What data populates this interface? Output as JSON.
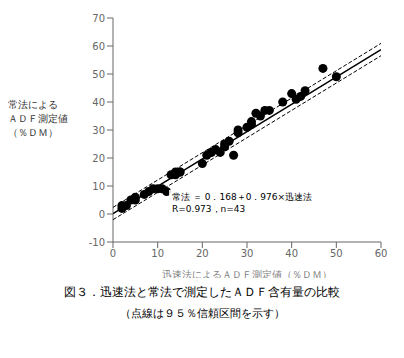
{
  "chart_data": {
    "type": "scatter",
    "title": "図３．迅速法と常法で測定したＡＤＦ含有量の比較",
    "subtitle": "（点線は９５％信頼区間を示す）",
    "x_label": "迅速法によるＡＤＦ測定値（％ＤＭ）",
    "y_label": [
      "常法による",
      "ＡＤＦ測定値",
      "（％ＤＭ）"
    ],
    "annotation": [
      "常法 ＝ 0．168＋0．976×迅速法",
      "R=0.973，n=43"
    ],
    "xlim": [
      0,
      60
    ],
    "ylim": [
      -10,
      70
    ],
    "xticks": [
      0,
      10,
      20,
      30,
      40,
      50,
      60
    ],
    "yticks": [
      -10,
      0,
      10,
      20,
      30,
      40,
      50,
      60,
      70
    ],
    "grid": false,
    "series": [
      {
        "type": "scatter",
        "marker": "circle",
        "color": "#000000",
        "x": [
          2,
          2,
          3,
          4,
          5,
          5,
          7,
          8,
          9,
          10,
          11,
          12,
          13,
          14,
          14,
          15,
          15,
          20,
          21,
          22,
          22,
          23,
          24,
          25,
          25,
          26,
          27,
          28,
          28,
          30,
          31,
          31,
          32,
          33,
          34,
          35,
          38,
          40,
          41,
          42,
          43,
          47,
          50
        ],
        "values": [
          2,
          3,
          3,
          5,
          5,
          6,
          7,
          8,
          9,
          9,
          9,
          8,
          14,
          14,
          15,
          15,
          15,
          18,
          21,
          22,
          22,
          23,
          22,
          24,
          25,
          26,
          21,
          29,
          30,
          31,
          32,
          33,
          36,
          35,
          37,
          37,
          40,
          43,
          41,
          42,
          44,
          52,
          49
        ]
      },
      {
        "type": "line",
        "line_style": "solid",
        "color": "#000000",
        "x": [
          0,
          60
        ],
        "values": [
          0.168,
          58.728
        ]
      },
      {
        "type": "line",
        "line_style": "dashed",
        "color": "#000000",
        "x": [
          0,
          60
        ],
        "values": [
          2.368,
          60.928
        ]
      },
      {
        "type": "line",
        "line_style": "dashed",
        "color": "#000000",
        "x": [
          0,
          60
        ],
        "values": [
          -2.032,
          56.528
        ]
      }
    ]
  }
}
